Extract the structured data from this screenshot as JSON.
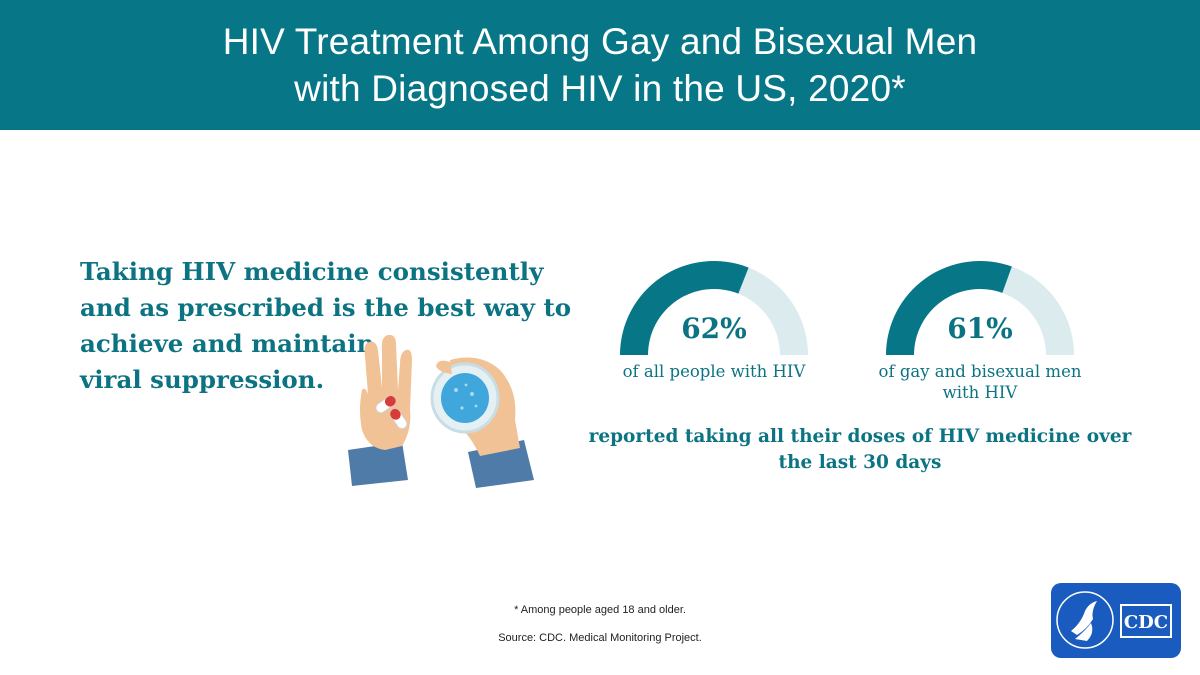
{
  "header": {
    "title_line1": "HIV Treatment Among Gay and Bisexual Men",
    "title_line2": "with Diagnosed HIV in the US, 2020*"
  },
  "intro": {
    "lines": [
      "Taking HIV medicine consistently",
      "and as prescribed is the best way to",
      "achieve and maintain",
      "viral suppression."
    ]
  },
  "chart_data": {
    "type": "pie",
    "title": "",
    "gauge_max": 100,
    "series": [
      {
        "value": 62,
        "value_label": "62%",
        "caption_lines": [
          "of all people with HIV"
        ]
      },
      {
        "value": 61,
        "value_label": "61%",
        "caption_lines": [
          "of gay and bisexual men",
          "with HIV"
        ]
      }
    ],
    "annotation_lines": [
      "reported taking all their doses of HIV medicine over",
      "the last 30 days"
    ],
    "colors": {
      "filled": "#077788",
      "remaining": "#dcebee"
    }
  },
  "footnotes": {
    "note": "* Among people aged 18 and older.",
    "source": "Source: CDC. Medical Monitoring Project."
  },
  "logo": {
    "text": "CDC",
    "color": "#1a5bbf"
  }
}
